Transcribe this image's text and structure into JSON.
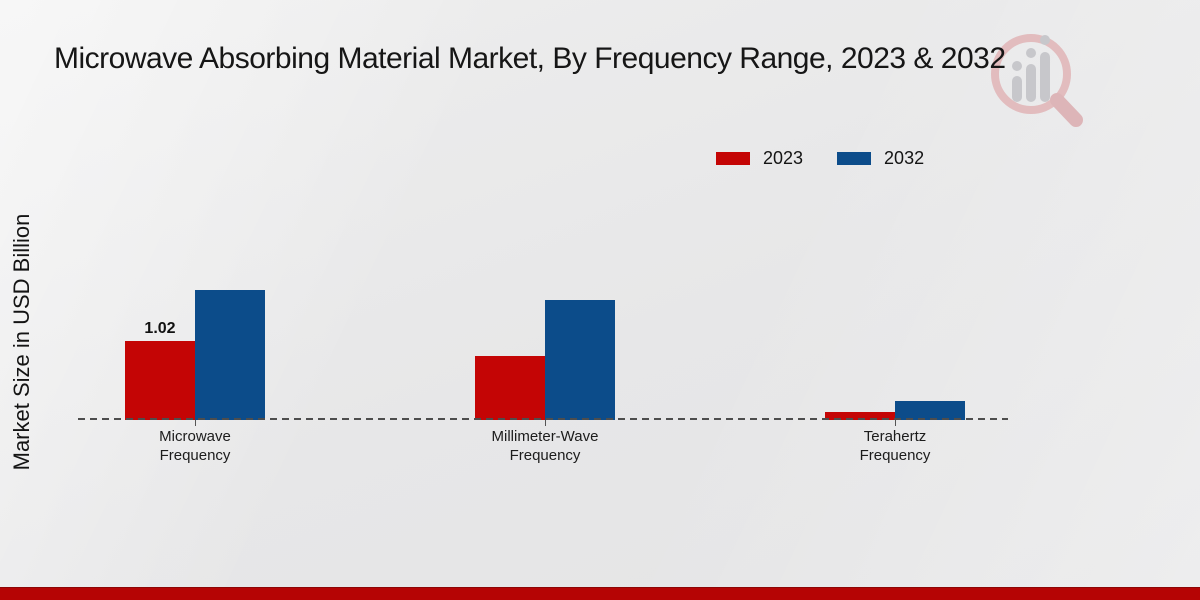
{
  "page": {
    "title": "Microwave Absorbing Material Market, By Frequency Range, 2023 & 2032"
  },
  "y_axis": {
    "label": "Market Size in USD Billion"
  },
  "legend": {
    "items": [
      {
        "label": "2023",
        "color": "#c40505"
      },
      {
        "label": "2032",
        "color": "#0c4c8a"
      }
    ]
  },
  "chart_data": {
    "type": "bar",
    "title": "Microwave Absorbing Material Market, By Frequency Range, 2023 & 2032",
    "xlabel": "",
    "ylabel": "Market Size in USD Billion",
    "categories": [
      "Microwave Frequency",
      "Millimeter-Wave Frequency",
      "Terahertz Frequency"
    ],
    "series": [
      {
        "name": "2023",
        "color": "#c40505",
        "values": [
          1.02,
          0.83,
          0.1
        ],
        "data_labels": [
          "1.02",
          "",
          ""
        ]
      },
      {
        "name": "2032",
        "color": "#0c4c8a",
        "values": [
          1.68,
          1.55,
          0.25
        ],
        "data_labels": [
          "",
          "",
          ""
        ]
      }
    ],
    "ylim": [
      0,
      2
    ],
    "grid": false,
    "legend_position": "top-right",
    "baseline_style": "dashed",
    "baseline_color": "#4d4d4d"
  },
  "footer": {
    "band_color": "#b50404"
  },
  "logo": {
    "name": "magnifier-bar-chart-watermark",
    "ring_color": "#e2bcbe",
    "bars_color": "#c7c7cb"
  }
}
